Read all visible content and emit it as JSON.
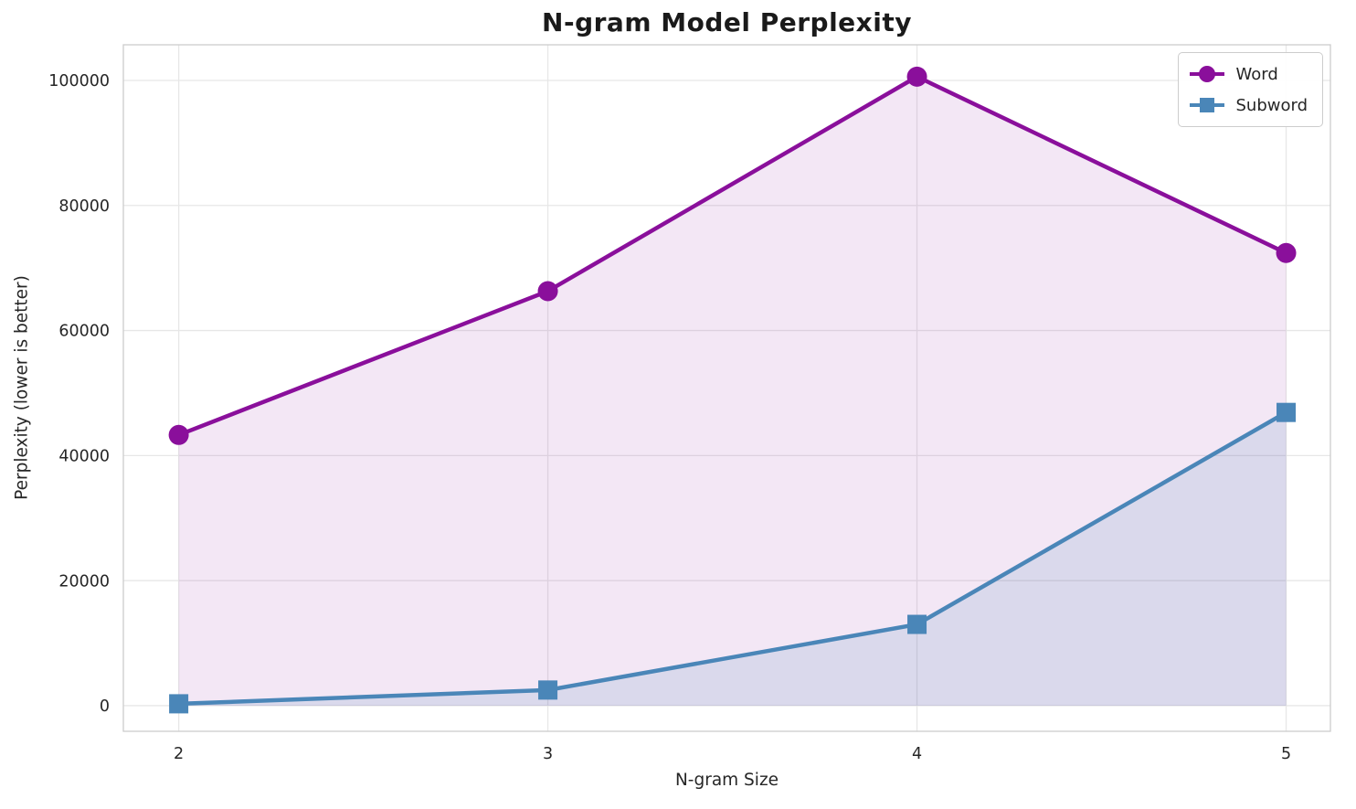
{
  "chart_data": {
    "type": "line",
    "title": "N-gram Model Perplexity",
    "xlabel": "N-gram Size",
    "ylabel": "Perplexity (lower is better)",
    "x": [
      2,
      3,
      4,
      5
    ],
    "series": [
      {
        "name": "Word",
        "values": [
          43300,
          66300,
          100600,
          72400
        ],
        "color": "#8a0f9b",
        "marker": "circle",
        "fill_to_zero": true,
        "fill_opacity": 0.1
      },
      {
        "name": "Subword",
        "values": [
          300,
          2500,
          13000,
          46900
        ],
        "color": "#4a86b8",
        "marker": "square",
        "fill_to_zero": true,
        "fill_opacity": 0.14
      }
    ],
    "xticks": [
      2,
      3,
      4,
      5
    ],
    "yticks": [
      0,
      20000,
      40000,
      60000,
      80000,
      100000
    ],
    "xlim": [
      1.85,
      5.12
    ],
    "ylim": [
      -4100,
      105700
    ],
    "grid": true,
    "grid_color": "#e7e7e7",
    "border_color": "#cccccc",
    "legend_position": "upper right"
  }
}
